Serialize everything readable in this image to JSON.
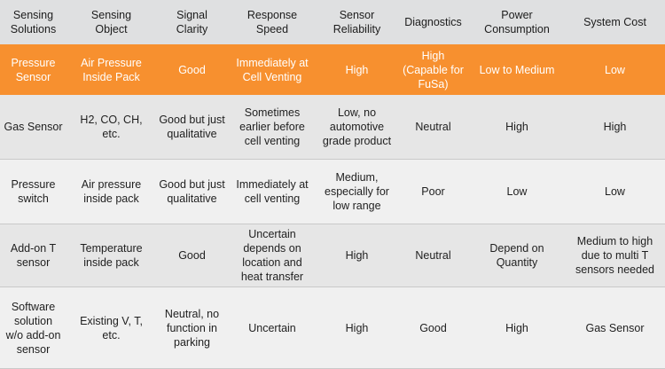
{
  "headers": [
    "Sensing\nSolutions",
    "Sensing\nObject",
    "Signal\nClarity",
    "Response\nSpeed",
    "Sensor\nReliability",
    "Diagnostics",
    "Power\nConsumption",
    "System Cost"
  ],
  "highlight_row": [
    "Pressure\nSensor",
    "Air Pressure\nInside Pack",
    "Good",
    "Immediately at\nCell Venting",
    "High",
    "High\n(Capable for\nFuSa)",
    "Low to Medium",
    "Low"
  ],
  "rows": [
    [
      "Gas Sensor",
      "H2, CO, CH,\netc.",
      "Good but just\nqualitative",
      "Sometimes\nearlier before\ncell venting",
      "Low, no\nautomotive\ngrade product",
      "Neutral",
      "High",
      "High"
    ],
    [
      "Pressure\nswitch",
      "Air pressure\ninside pack",
      "Good but just\nqualitative",
      "Immediately at\ncell venting",
      "Medium,\nespecially for\nlow range",
      "Poor",
      "Low",
      "Low"
    ],
    [
      "Add-on T\nsensor",
      "Temperature\ninside pack",
      "Good",
      "Uncertain\ndepends on\nlocation and\nheat transfer",
      "High",
      "Neutral",
      "Depend on\nQuantity",
      "Medium to high\ndue to multi T\nsensors needed"
    ],
    [
      "Software\nsolution\nw/o add-on\nsensor",
      "Existing V, T,\netc.",
      "Neutral, no\nfunction in\nparking",
      "Uncertain",
      "High",
      "Good",
      "High",
      "Gas Sensor"
    ]
  ]
}
